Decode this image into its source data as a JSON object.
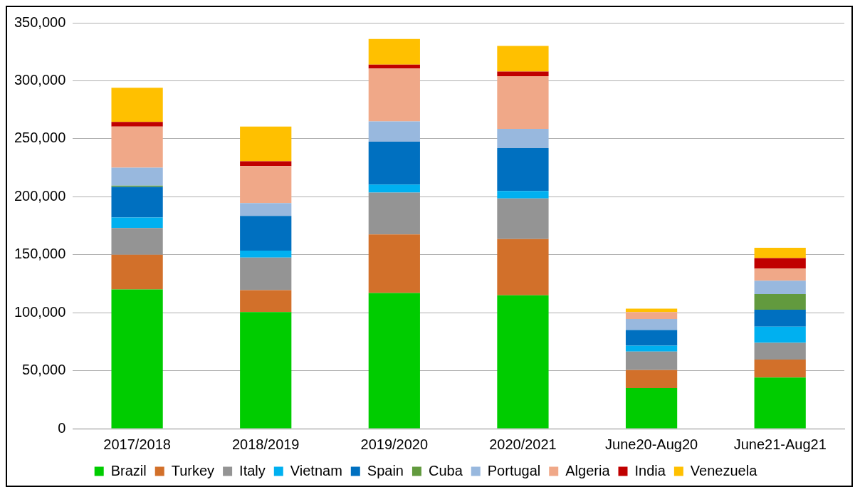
{
  "chart_data": {
    "type": "bar",
    "stacked": true,
    "categories": [
      "2017/2018",
      "2018/2019",
      "2019/2020",
      "2020/2021",
      "June20-Aug20",
      "June21-Aug21"
    ],
    "series": [
      {
        "name": "Brazil",
        "color": "#00cc00",
        "values": [
          120000,
          100500,
          117000,
          115000,
          35000,
          44000
        ]
      },
      {
        "name": "Turkey",
        "color": "#d2702a",
        "values": [
          30000,
          19000,
          50500,
          48500,
          15500,
          15500
        ]
      },
      {
        "name": "Italy",
        "color": "#949494",
        "values": [
          23000,
          28000,
          36000,
          35000,
          16000,
          14500
        ]
      },
      {
        "name": "Vietnam",
        "color": "#00b0f0",
        "values": [
          9000,
          6000,
          7000,
          6500,
          5000,
          14000
        ]
      },
      {
        "name": "Spain",
        "color": "#0070c0",
        "values": [
          26500,
          30000,
          37000,
          37000,
          13500,
          14500
        ]
      },
      {
        "name": "Cuba",
        "color": "#629a3e",
        "values": [
          1000,
          0,
          0,
          0,
          0,
          13500
        ]
      },
      {
        "name": "Portugal",
        "color": "#98b8de",
        "values": [
          15500,
          11000,
          17500,
          16500,
          9500,
          11500
        ]
      },
      {
        "name": "Algeria",
        "color": "#f0a888",
        "values": [
          35500,
          32000,
          45500,
          45500,
          6000,
          10500
        ]
      },
      {
        "name": "India",
        "color": "#c00000",
        "values": [
          4000,
          4000,
          3500,
          4000,
          0,
          9000
        ]
      },
      {
        "name": "Venezuela",
        "color": "#ffc000",
        "values": [
          29500,
          30000,
          22000,
          22000,
          3000,
          9000
        ]
      }
    ],
    "ylim": [
      0,
      350000
    ],
    "yticks": [
      0,
      {
        "value": 50000,
        "label": "50,000"
      },
      {
        "value": 100000,
        "label": "100,000"
      },
      {
        "value": 150000,
        "label": "150,000"
      },
      {
        "value": 200000,
        "label": "200,000"
      },
      {
        "value": 250000,
        "label": "250,000"
      },
      {
        "value": 300000,
        "label": "300,000"
      },
      {
        "value": 350000,
        "label": "350,000"
      }
    ],
    "grid": "y",
    "legend": "bottom"
  }
}
